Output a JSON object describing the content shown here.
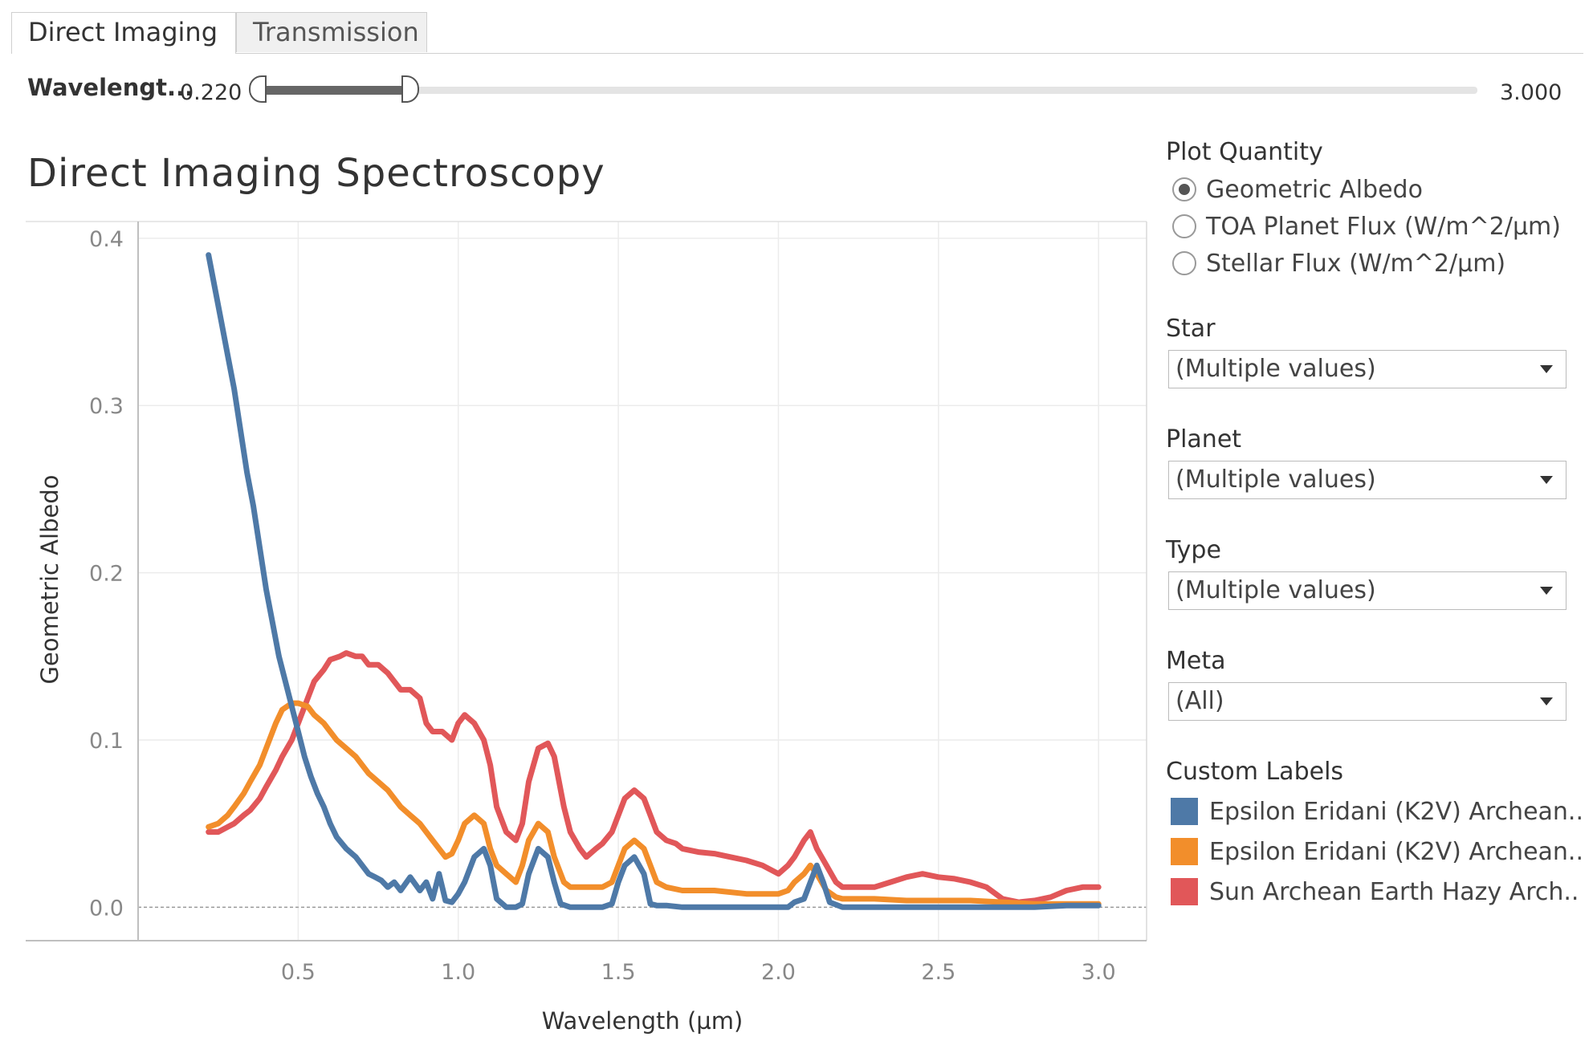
{
  "tabs": [
    {
      "label": "Direct Imaging",
      "active": true
    },
    {
      "label": "Transmission",
      "active": false
    }
  ],
  "slider": {
    "label": "Wavelengt...",
    "min_label": "0.220",
    "max_label": "3.000",
    "low": 0.22,
    "high": 0.4,
    "range": [
      0.22,
      3.0
    ]
  },
  "panel": {
    "plot_quantity": {
      "heading": "Plot Quantity",
      "options": [
        "Geometric Albedo",
        "TOA Planet Flux (W/m^2/µm)",
        "Stellar Flux (W/m^2/µm)"
      ],
      "selected_index": 0
    },
    "filters": [
      {
        "heading": "Star",
        "value": "(Multiple values)"
      },
      {
        "heading": "Planet",
        "value": "(Multiple values)"
      },
      {
        "heading": "Type",
        "value": "(Multiple values)"
      },
      {
        "heading": "Meta",
        "value": "(All)"
      }
    ],
    "legend": {
      "heading": "Custom Labels",
      "items": [
        {
          "label": "Epsilon Eridani (K2V) Archean..",
          "color": "#4e79a7"
        },
        {
          "label": "Epsilon Eridani (K2V) Archean..",
          "color": "#f28e2b"
        },
        {
          "label": "Sun Archean Earth Hazy Arch..",
          "color": "#e15759"
        }
      ]
    }
  },
  "chart_data": {
    "type": "line",
    "title": "Direct Imaging Spectroscopy",
    "xlabel": "Wavelength (µm)",
    "ylabel": "Geometric Albedo",
    "xlim": [
      0.0,
      3.15
    ],
    "ylim": [
      -0.02,
      0.41
    ],
    "xticks": [
      0.5,
      1.0,
      1.5,
      2.0,
      2.5,
      3.0
    ],
    "xtick_labels": [
      "0.5",
      "1.0",
      "1.5",
      "2.0",
      "2.5",
      "3.0"
    ],
    "yticks": [
      0.0,
      0.1,
      0.2,
      0.3,
      0.4
    ],
    "ytick_labels": [
      "0.0",
      "0.1",
      "0.2",
      "0.3",
      "0.4"
    ],
    "grid": true,
    "series": [
      {
        "color": "#4e79a7",
        "x": [
          0.22,
          0.24,
          0.26,
          0.28,
          0.3,
          0.32,
          0.34,
          0.36,
          0.38,
          0.4,
          0.42,
          0.44,
          0.46,
          0.48,
          0.5,
          0.52,
          0.54,
          0.56,
          0.58,
          0.6,
          0.62,
          0.65,
          0.68,
          0.7,
          0.72,
          0.74,
          0.76,
          0.78,
          0.8,
          0.82,
          0.85,
          0.88,
          0.9,
          0.92,
          0.94,
          0.96,
          0.98,
          1.0,
          1.02,
          1.05,
          1.08,
          1.1,
          1.12,
          1.15,
          1.18,
          1.2,
          1.22,
          1.25,
          1.28,
          1.3,
          1.32,
          1.35,
          1.4,
          1.45,
          1.48,
          1.5,
          1.52,
          1.55,
          1.58,
          1.6,
          1.62,
          1.65,
          1.7,
          1.8,
          1.9,
          1.95,
          2.0,
          2.03,
          2.05,
          2.08,
          2.1,
          2.12,
          2.14,
          2.16,
          2.2,
          2.3,
          2.4,
          2.5,
          2.6,
          2.7,
          2.8,
          2.9,
          3.0
        ],
        "y": [
          0.39,
          0.37,
          0.35,
          0.33,
          0.31,
          0.285,
          0.26,
          0.24,
          0.215,
          0.19,
          0.17,
          0.15,
          0.135,
          0.12,
          0.105,
          0.09,
          0.078,
          0.068,
          0.06,
          0.05,
          0.042,
          0.035,
          0.03,
          0.025,
          0.02,
          0.018,
          0.016,
          0.012,
          0.015,
          0.01,
          0.018,
          0.01,
          0.015,
          0.005,
          0.02,
          0.004,
          0.003,
          0.008,
          0.015,
          0.03,
          0.035,
          0.025,
          0.005,
          0.0,
          0.0,
          0.002,
          0.02,
          0.035,
          0.03,
          0.015,
          0.002,
          0.0,
          0.0,
          0.0,
          0.002,
          0.015,
          0.025,
          0.03,
          0.02,
          0.002,
          0.001,
          0.001,
          0.0,
          0.0,
          0.0,
          0.0,
          0.0,
          0.0,
          0.003,
          0.005,
          0.015,
          0.025,
          0.015,
          0.003,
          0.0,
          0.0,
          0.0,
          0.0,
          0.0,
          0.0,
          0.0,
          0.001,
          0.001
        ]
      },
      {
        "color": "#f28e2b",
        "x": [
          0.22,
          0.25,
          0.28,
          0.3,
          0.33,
          0.35,
          0.38,
          0.4,
          0.43,
          0.45,
          0.48,
          0.5,
          0.53,
          0.55,
          0.58,
          0.6,
          0.62,
          0.65,
          0.68,
          0.7,
          0.72,
          0.75,
          0.78,
          0.8,
          0.82,
          0.85,
          0.88,
          0.9,
          0.92,
          0.94,
          0.96,
          0.98,
          1.0,
          1.02,
          1.05,
          1.08,
          1.1,
          1.12,
          1.15,
          1.18,
          1.2,
          1.22,
          1.25,
          1.28,
          1.3,
          1.33,
          1.35,
          1.4,
          1.45,
          1.48,
          1.5,
          1.52,
          1.55,
          1.58,
          1.6,
          1.62,
          1.65,
          1.7,
          1.8,
          1.9,
          1.95,
          2.0,
          2.03,
          2.05,
          2.08,
          2.1,
          2.12,
          2.15,
          2.18,
          2.2,
          2.3,
          2.4,
          2.5,
          2.6,
          2.7,
          2.8,
          2.9,
          3.0
        ],
        "y": [
          0.048,
          0.05,
          0.055,
          0.06,
          0.068,
          0.075,
          0.085,
          0.095,
          0.11,
          0.118,
          0.122,
          0.122,
          0.12,
          0.115,
          0.11,
          0.105,
          0.1,
          0.095,
          0.09,
          0.085,
          0.08,
          0.075,
          0.07,
          0.065,
          0.06,
          0.055,
          0.05,
          0.045,
          0.04,
          0.035,
          0.03,
          0.032,
          0.04,
          0.05,
          0.055,
          0.05,
          0.035,
          0.025,
          0.02,
          0.015,
          0.025,
          0.04,
          0.05,
          0.045,
          0.03,
          0.015,
          0.012,
          0.012,
          0.012,
          0.015,
          0.025,
          0.035,
          0.04,
          0.035,
          0.025,
          0.015,
          0.012,
          0.01,
          0.01,
          0.008,
          0.008,
          0.008,
          0.01,
          0.015,
          0.02,
          0.025,
          0.02,
          0.01,
          0.006,
          0.005,
          0.005,
          0.004,
          0.004,
          0.004,
          0.003,
          0.002,
          0.002,
          0.002
        ]
      },
      {
        "color": "#e15759",
        "x": [
          0.22,
          0.25,
          0.28,
          0.3,
          0.33,
          0.35,
          0.38,
          0.4,
          0.43,
          0.45,
          0.48,
          0.5,
          0.53,
          0.55,
          0.58,
          0.6,
          0.63,
          0.65,
          0.68,
          0.7,
          0.72,
          0.75,
          0.78,
          0.8,
          0.82,
          0.85,
          0.88,
          0.9,
          0.92,
          0.95,
          0.98,
          1.0,
          1.02,
          1.05,
          1.08,
          1.1,
          1.12,
          1.15,
          1.18,
          1.2,
          1.22,
          1.25,
          1.28,
          1.3,
          1.33,
          1.35,
          1.38,
          1.4,
          1.43,
          1.45,
          1.48,
          1.5,
          1.52,
          1.55,
          1.58,
          1.6,
          1.62,
          1.65,
          1.68,
          1.7,
          1.75,
          1.8,
          1.85,
          1.9,
          1.95,
          2.0,
          2.03,
          2.05,
          2.08,
          2.1,
          2.12,
          2.15,
          2.18,
          2.2,
          2.25,
          2.3,
          2.35,
          2.4,
          2.45,
          2.5,
          2.55,
          2.6,
          2.65,
          2.7,
          2.75,
          2.8,
          2.85,
          2.9,
          2.95,
          3.0
        ],
        "y": [
          0.045,
          0.045,
          0.048,
          0.05,
          0.055,
          0.058,
          0.065,
          0.072,
          0.082,
          0.09,
          0.1,
          0.11,
          0.125,
          0.135,
          0.142,
          0.148,
          0.15,
          0.152,
          0.15,
          0.15,
          0.145,
          0.145,
          0.14,
          0.135,
          0.13,
          0.13,
          0.125,
          0.11,
          0.105,
          0.105,
          0.1,
          0.11,
          0.115,
          0.11,
          0.1,
          0.085,
          0.06,
          0.045,
          0.04,
          0.05,
          0.075,
          0.095,
          0.098,
          0.09,
          0.06,
          0.045,
          0.035,
          0.03,
          0.035,
          0.038,
          0.045,
          0.055,
          0.065,
          0.07,
          0.065,
          0.055,
          0.045,
          0.04,
          0.038,
          0.035,
          0.033,
          0.032,
          0.03,
          0.028,
          0.025,
          0.02,
          0.025,
          0.03,
          0.04,
          0.045,
          0.035,
          0.025,
          0.015,
          0.012,
          0.012,
          0.012,
          0.015,
          0.018,
          0.02,
          0.018,
          0.017,
          0.015,
          0.012,
          0.005,
          0.003,
          0.004,
          0.006,
          0.01,
          0.012,
          0.012
        ]
      }
    ]
  }
}
